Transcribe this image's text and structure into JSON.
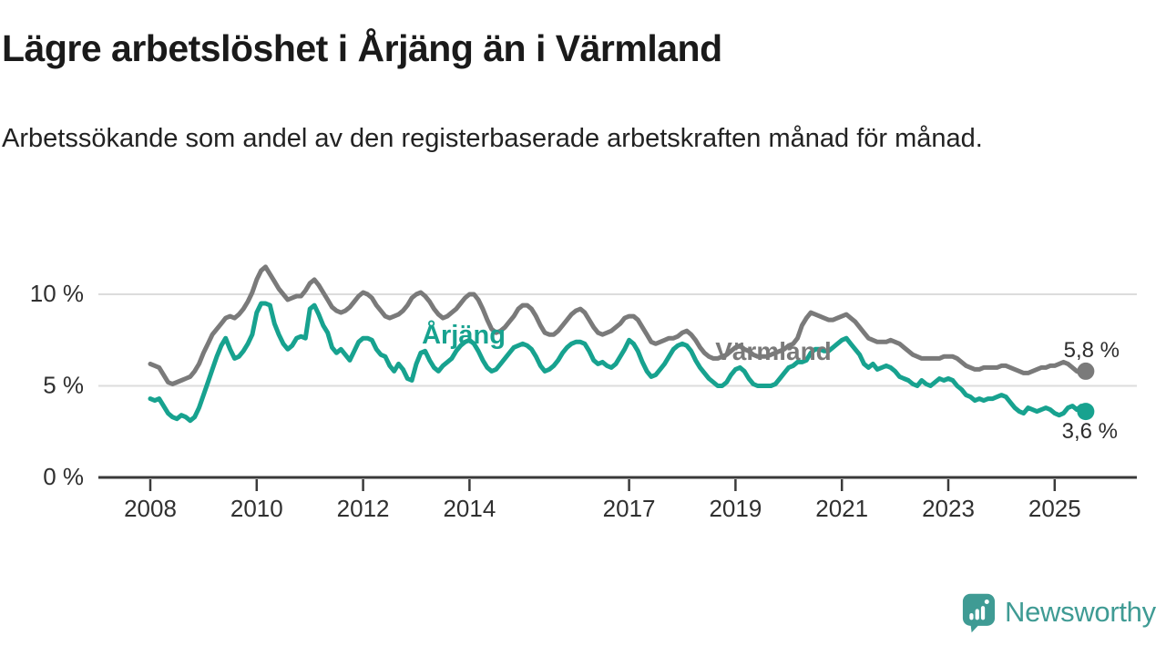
{
  "header": {
    "title": "Lägre arbetslöshet i Årjäng än i Värmland",
    "subtitle": "Arbetssökande som andel av den registerbaserade arbetskraften månad för månad."
  },
  "chart_data": {
    "type": "line",
    "title": "Lägre arbetslöshet i Årjäng än i Värmland",
    "x_unit": "month",
    "x_start": "2008-01",
    "x_end": "2025-08",
    "ylim": [
      0,
      12
    ],
    "grid": true,
    "y_gridlines": [
      5,
      10
    ],
    "y_tick_labels": [
      {
        "value": 0,
        "label": "0 %"
      },
      {
        "value": 5,
        "label": "5 %"
      },
      {
        "value": 10,
        "label": "10 %"
      }
    ],
    "x_ticks": [
      {
        "year": 2008,
        "label": "2008"
      },
      {
        "year": 2010,
        "label": "2010"
      },
      {
        "year": 2012,
        "label": "2012"
      },
      {
        "year": 2014,
        "label": "2014"
      },
      {
        "year": 2017,
        "label": "2017"
      },
      {
        "year": 2019,
        "label": "2019"
      },
      {
        "year": 2021,
        "label": "2021"
      },
      {
        "year": 2023,
        "label": "2023"
      },
      {
        "year": 2025,
        "label": "2025"
      }
    ],
    "legend_position": "inline-labels",
    "axis_color": "#3a3a3a",
    "gridline_color": "#dcdcdc",
    "end_label_color": "#2d2d2d",
    "series": [
      {
        "id": "varmland",
        "name": "Värmland",
        "color": "#7a7a7a",
        "end_label": "5,8 %",
        "end_value": 5.8,
        "values": [
          6.2,
          6.1,
          6.0,
          5.6,
          5.2,
          5.1,
          5.2,
          5.3,
          5.4,
          5.5,
          5.8,
          6.2,
          6.8,
          7.3,
          7.8,
          8.1,
          8.4,
          8.7,
          8.8,
          8.7,
          8.9,
          9.2,
          9.6,
          10.1,
          10.8,
          11.3,
          11.5,
          11.1,
          10.7,
          10.3,
          10.0,
          9.7,
          9.8,
          9.9,
          9.9,
          10.2,
          10.6,
          10.8,
          10.5,
          10.1,
          9.7,
          9.3,
          9.1,
          9.0,
          9.1,
          9.3,
          9.6,
          9.9,
          10.1,
          10.0,
          9.8,
          9.4,
          9.1,
          8.8,
          8.7,
          8.8,
          8.9,
          9.1,
          9.4,
          9.8,
          10.0,
          10.1,
          9.9,
          9.6,
          9.2,
          8.9,
          8.7,
          8.8,
          9.0,
          9.2,
          9.5,
          9.8,
          10.0,
          10.0,
          9.7,
          9.2,
          8.6,
          8.1,
          7.9,
          8.0,
          8.2,
          8.5,
          8.8,
          9.2,
          9.4,
          9.4,
          9.2,
          8.8,
          8.3,
          7.9,
          7.8,
          7.8,
          8.0,
          8.3,
          8.6,
          8.9,
          9.1,
          9.2,
          9.0,
          8.6,
          8.2,
          7.9,
          7.8,
          7.9,
          8.0,
          8.2,
          8.4,
          8.7,
          8.8,
          8.8,
          8.6,
          8.2,
          7.8,
          7.4,
          7.3,
          7.4,
          7.5,
          7.6,
          7.6,
          7.7,
          7.9,
          8.0,
          7.8,
          7.5,
          7.1,
          6.8,
          6.6,
          6.5,
          6.5,
          6.6,
          6.7,
          6.9,
          7.1,
          7.2,
          7.0,
          6.9,
          6.7,
          6.6,
          6.6,
          6.6,
          6.7,
          6.8,
          6.9,
          7.0,
          7.2,
          7.3,
          7.6,
          8.3,
          8.7,
          9.0,
          8.9,
          8.8,
          8.7,
          8.6,
          8.6,
          8.7,
          8.8,
          8.9,
          8.7,
          8.5,
          8.2,
          7.9,
          7.6,
          7.5,
          7.4,
          7.4,
          7.4,
          7.5,
          7.4,
          7.3,
          7.1,
          6.9,
          6.7,
          6.6,
          6.5,
          6.5,
          6.5,
          6.5,
          6.5,
          6.6,
          6.6,
          6.6,
          6.5,
          6.3,
          6.1,
          6.0,
          5.9,
          5.9,
          6.0,
          6.0,
          6.0,
          6.0,
          6.1,
          6.1,
          6.0,
          5.9,
          5.8,
          5.7,
          5.7,
          5.8,
          5.9,
          6.0,
          6.0,
          6.1,
          6.1,
          6.2,
          6.3,
          6.2,
          6.0,
          5.8,
          5.7,
          5.8
        ]
      },
      {
        "id": "arjang",
        "name": "Årjäng",
        "color": "#17a28f",
        "end_label": "3,6 %",
        "end_value": 3.6,
        "values": [
          4.3,
          4.2,
          4.3,
          3.9,
          3.5,
          3.3,
          3.2,
          3.4,
          3.3,
          3.1,
          3.3,
          3.8,
          4.5,
          5.2,
          5.9,
          6.6,
          7.2,
          7.6,
          7.0,
          6.5,
          6.6,
          6.9,
          7.3,
          7.8,
          9.0,
          9.5,
          9.5,
          9.4,
          8.4,
          7.8,
          7.3,
          7.0,
          7.2,
          7.6,
          7.7,
          7.6,
          9.2,
          9.4,
          8.9,
          8.3,
          7.9,
          7.1,
          6.8,
          7.0,
          6.7,
          6.4,
          6.9,
          7.4,
          7.6,
          7.6,
          7.5,
          7.0,
          6.7,
          6.6,
          6.1,
          5.8,
          6.2,
          5.9,
          5.4,
          5.3,
          6.2,
          6.8,
          6.9,
          6.4,
          6.0,
          5.8,
          6.1,
          6.3,
          6.5,
          6.9,
          7.2,
          7.4,
          7.5,
          7.3,
          6.9,
          6.4,
          6.0,
          5.8,
          5.9,
          6.2,
          6.5,
          6.8,
          7.1,
          7.2,
          7.3,
          7.2,
          7.0,
          6.6,
          6.1,
          5.8,
          5.9,
          6.1,
          6.4,
          6.8,
          7.1,
          7.3,
          7.4,
          7.4,
          7.3,
          6.9,
          6.4,
          6.2,
          6.3,
          6.1,
          6.0,
          6.2,
          6.6,
          7.0,
          7.5,
          7.3,
          6.9,
          6.3,
          5.8,
          5.5,
          5.6,
          5.9,
          6.2,
          6.6,
          7.0,
          7.2,
          7.3,
          7.2,
          6.9,
          6.4,
          6.0,
          5.7,
          5.4,
          5.2,
          5.0,
          5.0,
          5.2,
          5.6,
          5.9,
          6.0,
          5.8,
          5.4,
          5.1,
          5.0,
          5.0,
          5.0,
          5.0,
          5.1,
          5.4,
          5.7,
          6.0,
          6.1,
          6.3,
          6.3,
          6.4,
          6.8,
          7.0,
          7.0,
          6.9,
          6.9,
          7.1,
          7.3,
          7.5,
          7.6,
          7.3,
          7.0,
          6.7,
          6.2,
          6.0,
          6.2,
          5.9,
          6.0,
          6.1,
          6.0,
          5.8,
          5.5,
          5.4,
          5.3,
          5.1,
          5.0,
          5.3,
          5.1,
          5.0,
          5.2,
          5.4,
          5.3,
          5.4,
          5.3,
          5.0,
          4.8,
          4.5,
          4.4,
          4.2,
          4.3,
          4.2,
          4.3,
          4.3,
          4.4,
          4.5,
          4.4,
          4.1,
          3.8,
          3.6,
          3.5,
          3.8,
          3.7,
          3.6,
          3.7,
          3.8,
          3.7,
          3.5,
          3.4,
          3.5,
          3.8,
          3.9,
          3.7,
          3.9,
          3.6
        ]
      }
    ]
  },
  "footer": {
    "brand": "Newsworthy",
    "brand_color": "#3f9b94"
  }
}
